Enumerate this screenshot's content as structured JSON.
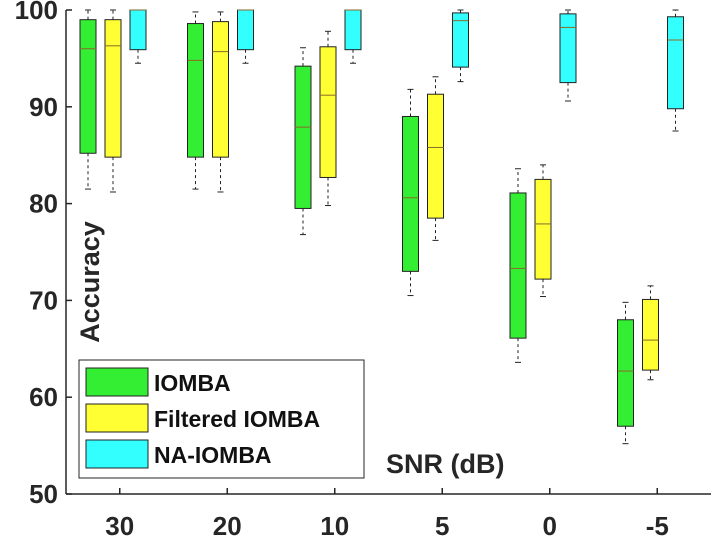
{
  "chart_data": {
    "type": "boxplot",
    "title": "",
    "xlabel": "SNR (dB)",
    "ylabel": "Accuracy",
    "ylim": [
      50,
      100
    ],
    "yticks": [
      50,
      60,
      70,
      80,
      90,
      100
    ],
    "categories": [
      "30",
      "20",
      "10",
      "5",
      "0",
      "-5"
    ],
    "legend_position": "bottom-left",
    "series": [
      {
        "name": "IOMBA",
        "color": "#33ee33",
        "boxes": [
          {
            "whisker_low": 81.5,
            "q1": 85.2,
            "median": 96.0,
            "q3": 99.0,
            "whisker_high": 100
          },
          {
            "whisker_low": 81.5,
            "q1": 84.8,
            "median": 94.8,
            "q3": 98.6,
            "whisker_high": 99.8
          },
          {
            "whisker_low": 76.8,
            "q1": 79.5,
            "median": 87.9,
            "q3": 94.2,
            "whisker_high": 96.1
          },
          {
            "whisker_low": 70.5,
            "q1": 73.0,
            "median": 80.6,
            "q3": 89.0,
            "whisker_high": 91.8
          },
          {
            "whisker_low": 63.6,
            "q1": 66.1,
            "median": 73.3,
            "q3": 81.1,
            "whisker_high": 83.6
          },
          {
            "whisker_low": 55.2,
            "q1": 57.0,
            "median": 62.7,
            "q3": 68.0,
            "whisker_high": 69.8
          }
        ]
      },
      {
        "name": "Filtered IOMBA",
        "color": "#ffff33",
        "boxes": [
          {
            "whisker_low": 81.2,
            "q1": 84.8,
            "median": 96.3,
            "q3": 99.0,
            "whisker_high": 100
          },
          {
            "whisker_low": 81.2,
            "q1": 84.8,
            "median": 95.7,
            "q3": 98.8,
            "whisker_high": 99.8
          },
          {
            "whisker_low": 79.8,
            "q1": 82.7,
            "median": 91.2,
            "q3": 96.2,
            "whisker_high": 97.8
          },
          {
            "whisker_low": 76.2,
            "q1": 78.5,
            "median": 85.8,
            "q3": 91.3,
            "whisker_high": 93.1
          },
          {
            "whisker_low": 70.4,
            "q1": 72.2,
            "median": 77.9,
            "q3": 82.5,
            "whisker_high": 84.0
          },
          {
            "whisker_low": 61.8,
            "q1": 62.8,
            "median": 65.9,
            "q3": 70.1,
            "whisker_high": 71.5
          }
        ]
      },
      {
        "name": "NA-IOMBA",
        "color": "#33ffff",
        "boxes": [
          {
            "whisker_low": 94.5,
            "q1": 95.9,
            "median": 100,
            "q3": 100,
            "whisker_high": 100
          },
          {
            "whisker_low": 94.5,
            "q1": 95.9,
            "median": 100,
            "q3": 100,
            "whisker_high": 100
          },
          {
            "whisker_low": 94.5,
            "q1": 95.9,
            "median": 100,
            "q3": 100,
            "whisker_high": 100
          },
          {
            "whisker_low": 92.6,
            "q1": 94.1,
            "median": 98.9,
            "q3": 99.7,
            "whisker_high": 100
          },
          {
            "whisker_low": 90.6,
            "q1": 92.5,
            "median": 98.2,
            "q3": 99.6,
            "whisker_high": 100
          },
          {
            "whisker_low": 87.5,
            "q1": 89.8,
            "median": 96.9,
            "q3": 99.3,
            "whisker_high": 100
          }
        ]
      }
    ]
  }
}
